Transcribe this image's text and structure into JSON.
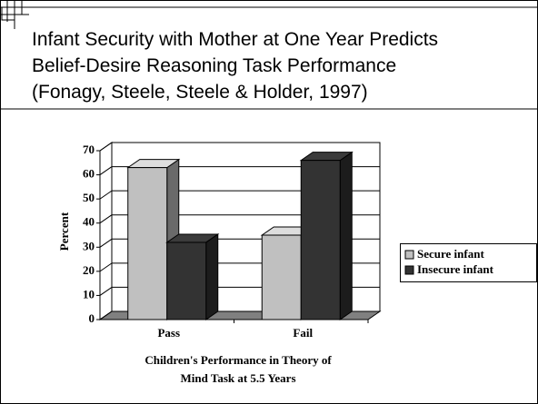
{
  "chart_data": {
    "type": "bar",
    "title": [
      "Infant Security with Mother at One Year Predicts",
      "Belief-Desire Reasoning Task Performance",
      "(Fonagy, Steele, Steele & Holder, 1997)"
    ],
    "categories": [
      "Pass",
      "Fail"
    ],
    "series": [
      {
        "name": "Secure infant",
        "color": "#c0c0c0",
        "values": [
          63,
          35
        ]
      },
      {
        "name": "Insecure infant",
        "color": "#333333",
        "values": [
          32,
          66
        ]
      }
    ],
    "y_label": "Percent",
    "x_label": [
      "Children's Performance in Theory of",
      "Mind Task at 5.5 Years"
    ],
    "ylim": [
      0,
      70
    ],
    "yticks": [
      0,
      10,
      20,
      30,
      40,
      50,
      60,
      70
    ],
    "grid": true,
    "legend": "right"
  }
}
